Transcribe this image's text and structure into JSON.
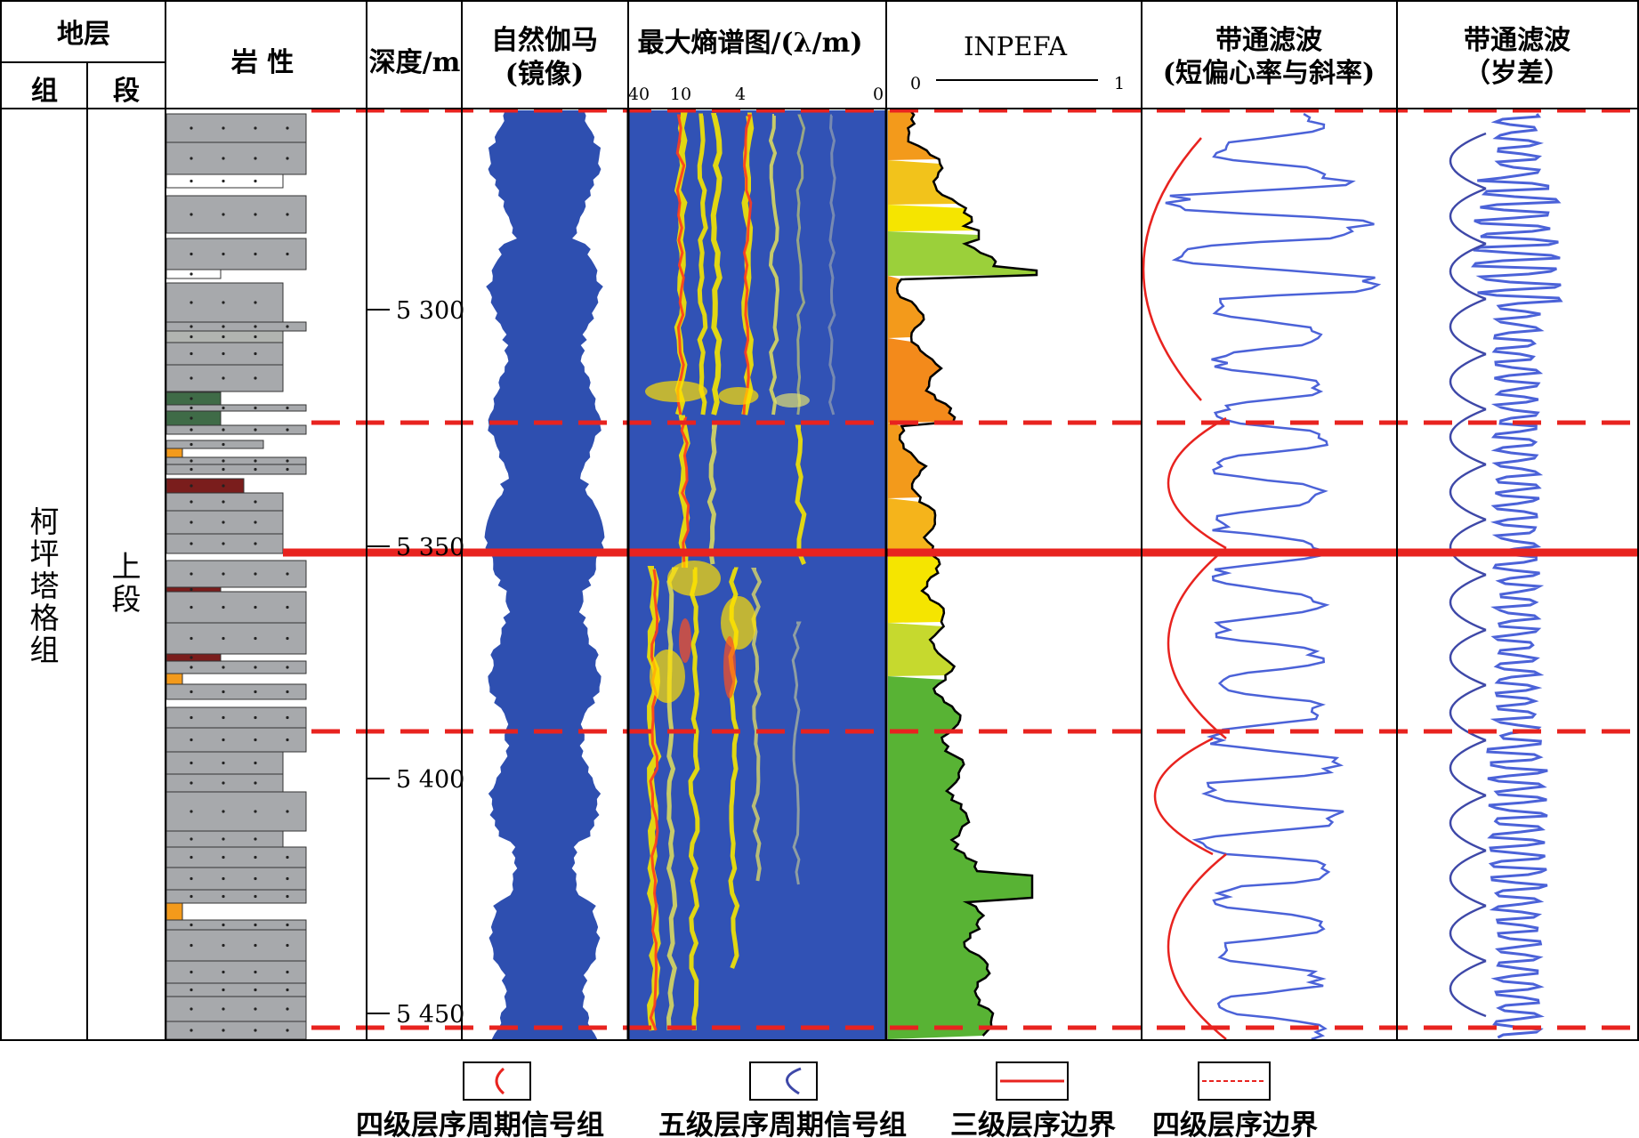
{
  "headers": {
    "stratum": "地层",
    "formation": "组",
    "member": "段",
    "lithology": "岩 性",
    "depth": "深度/m",
    "gamma_line1": "自然伽马",
    "gamma_line2": "(镜像)",
    "mesa": "最大熵谱图/(λ/m)",
    "mesa_ticks": [
      "40",
      "10",
      "4",
      "0"
    ],
    "inpefa": "INPEFA",
    "inpefa_min": "0",
    "inpefa_max": "1",
    "bp1_line1": "带通滤波",
    "bp1_line2": "(短偏心率与斜率)",
    "bp2_line1": "带通滤波",
    "bp2_line2": "（岁差）"
  },
  "formation_name": [
    "柯",
    "坪",
    "塔",
    "格",
    "组"
  ],
  "member_name": [
    "上",
    "段"
  ],
  "depth_ticks": [
    "5 300",
    "5 350",
    "5 400",
    "5 450"
  ],
  "legend": {
    "items": [
      {
        "label": "四级层序周期信号组",
        "symbol": "red-arc"
      },
      {
        "label": "五级层序周期信号组",
        "symbol": "blue-arc"
      },
      {
        "label": "三级层序边界",
        "symbol": "red-solid-line"
      },
      {
        "label": "四级层序边界",
        "symbol": "red-dashed-line"
      }
    ]
  },
  "colors": {
    "red": "#e8231f",
    "blue": "#2e4fb0",
    "curve_blue": "#4b62d8",
    "arc_blue": "#3e48a8",
    "rock_gray": "#a7a9ac",
    "sand_gray": "#b1b4b0",
    "green_shale": "#3f6b47",
    "red_shale": "#7a1d1c",
    "orange": "#f39a1b",
    "yellow": "#f5e500",
    "green": "#58b334"
  }
}
